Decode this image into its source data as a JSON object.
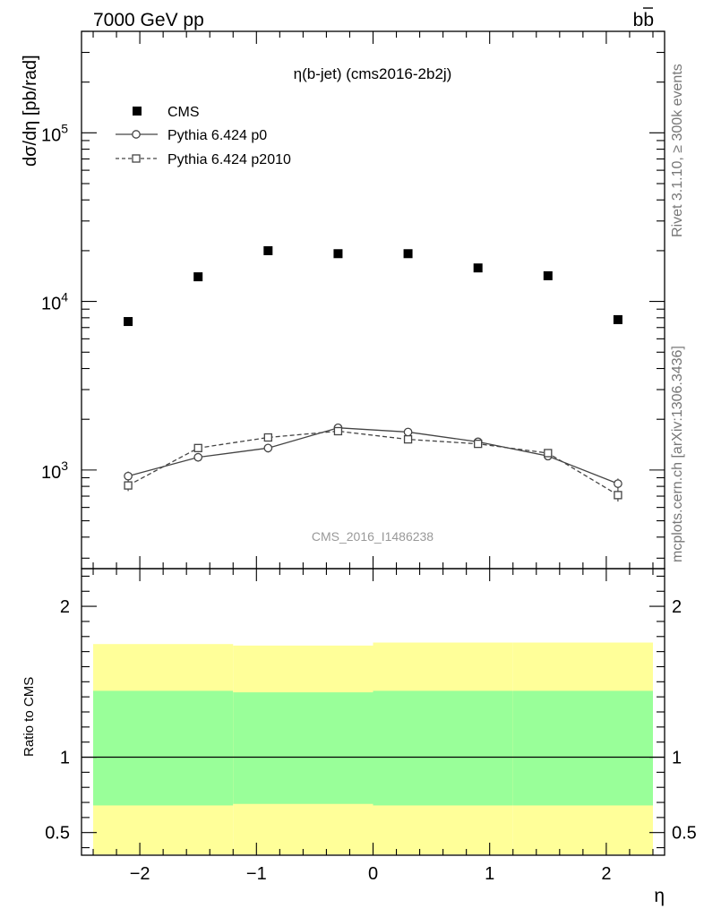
{
  "header": {
    "left_label": "7000 GeV pp",
    "right_label": "b",
    "right_label_bar": "b"
  },
  "side": {
    "rivet": "Rivet 3.1.10, ≥ 300k events",
    "mcplots": "mcplots.cern.ch [arXiv:1306.3436]"
  },
  "chart_data": {
    "type": "scatter",
    "title": "η(b-jet) (cms2016-2b2j)",
    "watermark": "CMS_2016_I1486238",
    "xlabel": "η",
    "ylabel": "dσ/dη [pb/rad]",
    "ratio_ylabel": "Ratio to CMS",
    "xlim": [
      -2.5,
      2.5
    ],
    "ylim": [
      260,
      400000
    ],
    "yscale": "log",
    "ratio_ylim": [
      0.35,
      2.25
    ],
    "x_ticks": [
      -2,
      -1,
      0,
      1,
      2
    ],
    "x_tick_labels": [
      "−2",
      "−1",
      "0",
      "1",
      "2"
    ],
    "y_ticks": [
      1000,
      10000,
      100000
    ],
    "y_tick_labels": [
      {
        "base": "10",
        "exp": "3"
      },
      {
        "base": "10",
        "exp": "4"
      },
      {
        "base": "10",
        "exp": "5"
      }
    ],
    "ratio_ticks": [
      0.5,
      1,
      2
    ],
    "ratio_tick_labels": [
      "0.5",
      "1",
      "2"
    ],
    "x": [
      -2.1,
      -1.5,
      -0.9,
      -0.3,
      0.3,
      0.9,
      1.5,
      2.1
    ],
    "series": [
      {
        "name": "CMS",
        "marker": "filled-square",
        "values": [
          7600,
          14000,
          20000,
          19200,
          19200,
          15800,
          14200,
          7800
        ]
      },
      {
        "name": "Pythia 6.424 p0",
        "marker": "open-circle",
        "line": "solid",
        "values": [
          920,
          1190,
          1350,
          1780,
          1680,
          1470,
          1210,
          830
        ],
        "errors": [
          60,
          70,
          80,
          60,
          60,
          50,
          60,
          60
        ]
      },
      {
        "name": "Pythia 6.424 p2010",
        "marker": "open-square",
        "line": "dashed",
        "values": [
          810,
          1350,
          1560,
          1700,
          1520,
          1430,
          1260,
          710
        ],
        "errors": [
          60,
          60,
          60,
          50,
          50,
          50,
          60,
          60
        ]
      }
    ],
    "ratio_bands": {
      "edges": [
        -2.4,
        -1.2,
        0.0,
        1.2,
        2.4
      ],
      "yellow_low": [
        0.355,
        0.355,
        0.355,
        0.355
      ],
      "yellow_high": [
        1.75,
        1.74,
        1.76,
        1.76
      ],
      "green_low": [
        0.68,
        0.69,
        0.68,
        0.68
      ],
      "green_high": [
        1.44,
        1.43,
        1.44,
        1.44
      ]
    },
    "legend_position": "top-left",
    "colors": {
      "data": "#000000",
      "mc": "#444444",
      "yellow_band": "#ffff99",
      "green_band": "#99ff99",
      "watermark": "#999999",
      "side_text": "#777777"
    }
  }
}
